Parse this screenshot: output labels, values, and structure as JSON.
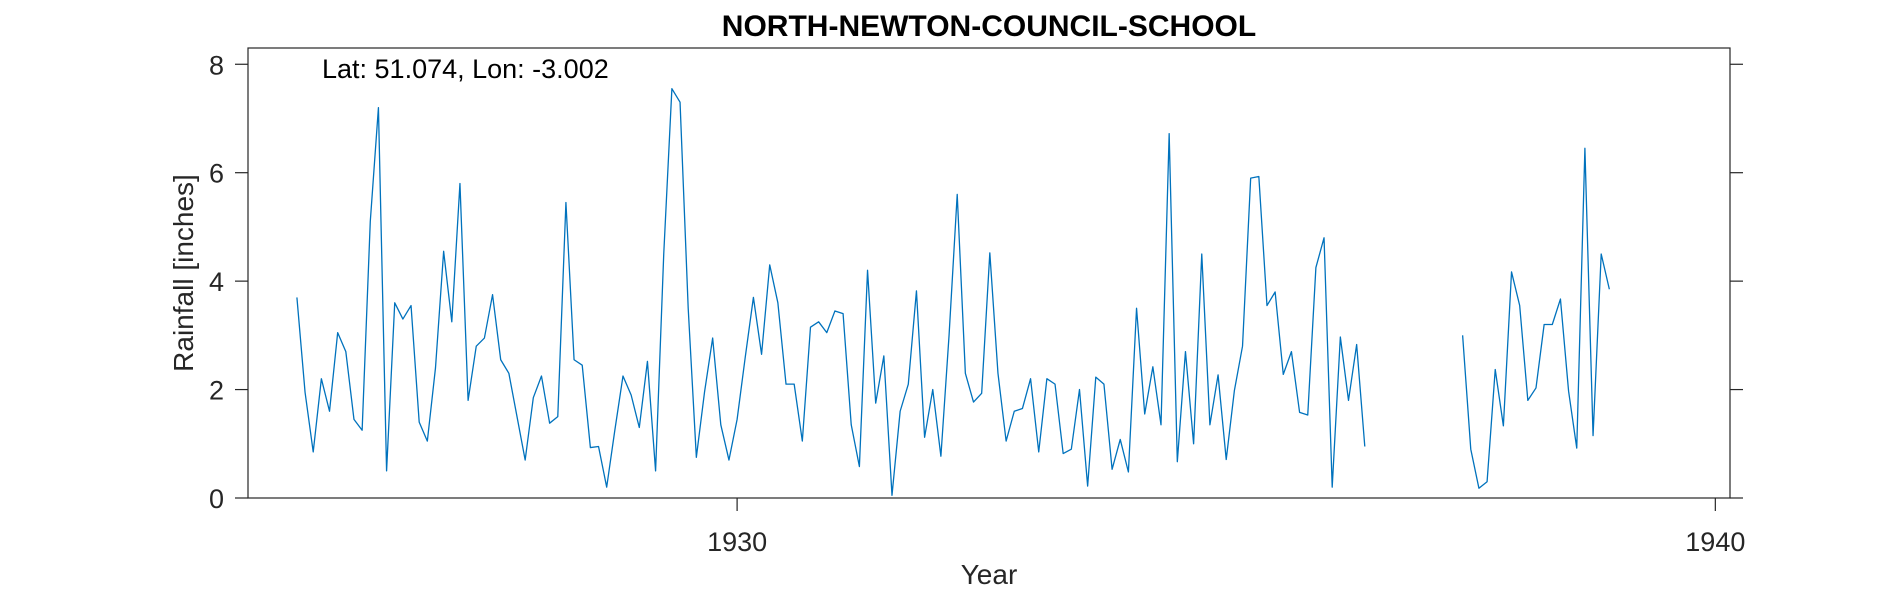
{
  "chart_data": {
    "type": "line",
    "title": "NORTH-NEWTON-COUNCIL-SCHOOL",
    "xlabel": "Year",
    "ylabel": "Rainfall [inches]",
    "annotation": "Lat: 51.074, Lon: -3.002",
    "xlim": [
      1925.0,
      1940.15
    ],
    "ylim": [
      0,
      8.3
    ],
    "x_ticks": [
      1930,
      1940
    ],
    "x_tick_labels": [
      "1930",
      "1940"
    ],
    "y_ticks": [
      0,
      2,
      4,
      6,
      8
    ],
    "y_tick_labels": [
      "0",
      "2",
      "4",
      "6",
      "8"
    ],
    "grid": false,
    "legend": "none",
    "series": [
      {
        "color": "#0072BD",
        "start": "1925-07",
        "frequency": "monthly",
        "values": [
          3.7,
          1.95,
          0.85,
          2.2,
          1.6,
          3.05,
          2.7,
          1.45,
          1.25,
          5.1,
          7.2,
          0.5,
          3.6,
          3.3,
          3.55,
          1.4,
          1.05,
          2.4,
          4.55,
          3.25,
          5.8,
          1.8,
          2.8,
          2.95,
          3.75,
          2.55,
          2.3,
          1.5,
          0.7,
          1.85,
          2.25,
          1.38,
          1.5,
          5.45,
          2.55,
          2.45,
          0.93,
          0.95,
          0.2,
          1.25,
          2.25,
          1.9,
          1.3,
          2.52,
          0.5,
          4.5,
          7.55,
          7.3,
          3.5,
          0.75,
          1.95,
          2.95,
          1.35,
          0.7,
          1.45,
          2.6,
          3.7,
          2.65,
          4.3,
          3.6,
          2.1,
          2.1,
          1.05,
          3.15,
          3.25,
          3.05,
          3.45,
          3.4,
          1.35,
          0.58,
          4.2,
          1.75,
          2.62,
          0.05,
          1.6,
          2.1,
          3.82,
          1.12,
          2.0,
          0.77,
          3.0,
          5.6,
          2.3,
          1.77,
          1.93,
          4.52,
          2.3,
          1.05,
          1.6,
          1.65,
          2.2,
          0.85,
          2.2,
          2.1,
          0.82,
          0.9,
          2.0,
          0.22,
          2.23,
          2.1,
          0.53,
          1.08,
          0.48,
          3.5,
          1.55,
          2.42,
          1.35,
          6.72,
          0.67,
          2.7,
          1.0,
          4.5,
          1.35,
          2.27,
          0.71,
          1.98,
          2.8,
          5.9,
          5.93,
          3.55,
          3.8,
          2.28,
          2.7,
          1.58,
          1.53,
          4.25,
          4.8,
          0.2,
          2.97,
          1.8,
          2.83,
          0.95,
          null,
          null,
          null,
          null,
          null,
          null,
          null,
          null,
          null,
          null,
          null,
          3.0,
          0.9,
          0.18,
          0.3,
          2.37,
          1.33,
          4.17,
          3.55,
          1.8,
          2.03,
          3.2,
          3.2,
          3.67,
          1.97,
          0.92,
          6.45,
          1.15,
          4.5,
          3.85
        ]
      }
    ]
  }
}
